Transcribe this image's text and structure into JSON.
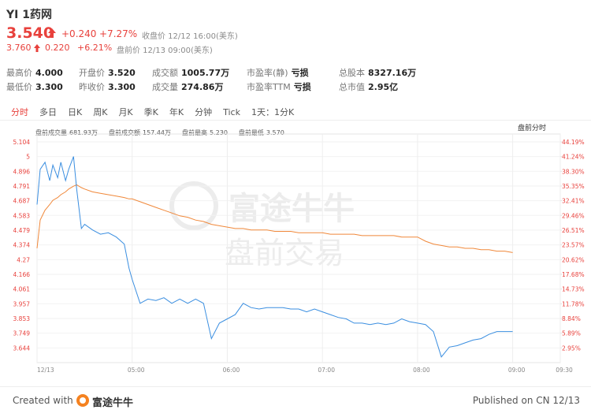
{
  "header": {
    "symbol": "YI 1药网",
    "price": "3.540",
    "change": "+0.240",
    "change_pct": "+7.27%",
    "close_note": "收盘价 12/12 16:00(美东)",
    "pre_price": "3.760",
    "pre_change": "0.220",
    "pre_change_pct": "+6.21%",
    "pre_note": "盘前价 12/13 09:00(美东)"
  },
  "stats": [
    {
      "label": "最高价",
      "value": "4.000"
    },
    {
      "label": "开盘价",
      "value": "3.520"
    },
    {
      "label": "成交额",
      "value": "1005.77万"
    },
    {
      "label": "市盈率(静)",
      "value": "亏损"
    },
    {
      "label": "总股本",
      "value": "8327.16万"
    },
    {
      "label": "最低价",
      "value": "3.300"
    },
    {
      "label": "昨收价",
      "value": "3.300"
    },
    {
      "label": "成交量",
      "value": "274.86万"
    },
    {
      "label": "市盈率TTM",
      "value": "亏损"
    },
    {
      "label": "总市值",
      "value": "2.95亿"
    }
  ],
  "tabs": [
    "分时",
    "多日",
    "日K",
    "周K",
    "月K",
    "季K",
    "年K",
    "分钟",
    "Tick",
    "1天：1分K"
  ],
  "chart_info": [
    {
      "label": "盘前成交量",
      "value": "681.93万"
    },
    {
      "label": "盘前成交额",
      "value": "157.44万"
    },
    {
      "label": "盘前最高",
      "value": "5.230"
    },
    {
      "label": "盘前最低",
      "value": "3.570"
    }
  ],
  "chart_mode": "盘前分时",
  "watermark": {
    "brand": "富途牛牛",
    "session": "盘前交易"
  },
  "footer": {
    "created": "Created with",
    "brand": "富途牛牛",
    "published": "Published on CN 12/13"
  },
  "chart_data": {
    "type": "line",
    "x": [
      "04:00",
      "04:02",
      "04:05",
      "04:08",
      "04:10",
      "04:13",
      "04:15",
      "04:18",
      "04:20",
      "04:23",
      "04:25",
      "04:28",
      "04:30",
      "04:35",
      "04:40",
      "04:45",
      "04:50",
      "04:55",
      "04:58",
      "05:00",
      "05:05",
      "05:10",
      "05:15",
      "05:20",
      "05:25",
      "05:30",
      "05:35",
      "05:40",
      "05:45",
      "05:50",
      "05:55",
      "06:00",
      "06:05",
      "06:10",
      "06:15",
      "06:20",
      "06:25",
      "06:30",
      "06:35",
      "06:40",
      "06:45",
      "06:50",
      "06:55",
      "07:00",
      "07:05",
      "07:10",
      "07:15",
      "07:20",
      "07:25",
      "07:30",
      "07:35",
      "07:40",
      "07:45",
      "07:50",
      "07:55",
      "08:00",
      "08:05",
      "08:10",
      "08:15",
      "08:20",
      "08:25",
      "08:30",
      "08:35",
      "08:40",
      "08:45",
      "08:50",
      "08:55",
      "09:00"
    ],
    "series": [
      {
        "name": "价格",
        "color": "#3a8ee0",
        "values": [
          4.66,
          4.91,
          4.96,
          4.83,
          4.94,
          4.85,
          4.96,
          4.83,
          4.91,
          5.0,
          4.77,
          4.49,
          4.52,
          4.48,
          4.45,
          4.46,
          4.43,
          4.38,
          4.21,
          4.13,
          3.96,
          3.99,
          3.98,
          4.0,
          3.96,
          3.99,
          3.96,
          3.99,
          3.96,
          3.71,
          3.82,
          3.85,
          3.88,
          3.96,
          3.93,
          3.92,
          3.93,
          3.93,
          3.93,
          3.92,
          3.92,
          3.9,
          3.92,
          3.9,
          3.88,
          3.86,
          3.85,
          3.82,
          3.82,
          3.81,
          3.82,
          3.81,
          3.82,
          3.85,
          3.83,
          3.82,
          3.81,
          3.76,
          3.58,
          3.65,
          3.66,
          3.68,
          3.7,
          3.71,
          3.74,
          3.76,
          3.76,
          3.76
        ]
      },
      {
        "name": "均价",
        "color": "#f0883a",
        "values": [
          4.35,
          4.55,
          4.62,
          4.66,
          4.69,
          4.71,
          4.73,
          4.75,
          4.77,
          4.79,
          4.8,
          4.78,
          4.77,
          4.75,
          4.74,
          4.73,
          4.72,
          4.71,
          4.7,
          4.7,
          4.68,
          4.66,
          4.64,
          4.62,
          4.6,
          4.58,
          4.57,
          4.55,
          4.54,
          4.52,
          4.51,
          4.5,
          4.49,
          4.49,
          4.48,
          4.48,
          4.48,
          4.47,
          4.47,
          4.47,
          4.46,
          4.46,
          4.46,
          4.46,
          4.45,
          4.45,
          4.45,
          4.45,
          4.44,
          4.44,
          4.44,
          4.44,
          4.44,
          4.43,
          4.43,
          4.43,
          4.4,
          4.38,
          4.37,
          4.36,
          4.36,
          4.35,
          4.35,
          4.34,
          4.34,
          4.33,
          4.33,
          4.32
        ]
      }
    ],
    "xlim": [
      "04:00",
      "09:30"
    ],
    "xticks": [
      {
        "value": "04:00",
        "label": "12/13"
      },
      "05:00",
      "06:00",
      "07:00",
      "08:00",
      "09:00",
      "09:30"
    ],
    "ylim": [
      3.54,
      5.16
    ],
    "yticks": [
      5.104,
      5.0,
      4.896,
      4.791,
      4.687,
      4.583,
      4.479,
      4.374,
      4.27,
      4.166,
      4.061,
      3.957,
      3.853,
      3.749,
      3.644
    ],
    "y2lim": [
      0,
      45.76
    ],
    "y2ticks": [
      {
        "value": 44.19,
        "label": "44.19%"
      },
      {
        "value": 41.24,
        "label": "41.24%"
      },
      {
        "value": 38.3,
        "label": "38.30%"
      },
      {
        "value": 35.35,
        "label": "35.35%"
      },
      {
        "value": 32.41,
        "label": "32.41%"
      },
      {
        "value": 29.46,
        "label": "29.46%"
      },
      {
        "value": 26.51,
        "label": "26.51%"
      },
      {
        "value": 23.57,
        "label": "23.57%"
      },
      {
        "value": 20.62,
        "label": "20.62%"
      },
      {
        "value": 17.68,
        "label": "17.68%"
      },
      {
        "value": 14.73,
        "label": "14.73%"
      },
      {
        "value": 11.78,
        "label": "11.78%"
      },
      {
        "value": 8.84,
        "label": "8.84%"
      },
      {
        "value": 5.89,
        "label": "5.89%"
      },
      {
        "value": 2.95,
        "label": "2.95%"
      }
    ],
    "grid": true
  }
}
